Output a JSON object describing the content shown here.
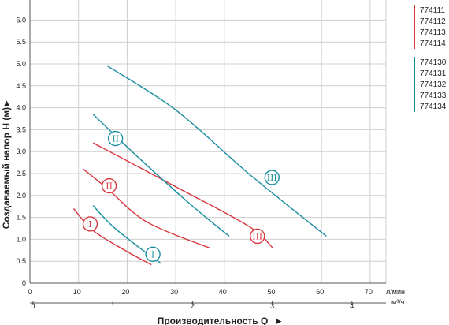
{
  "chart_data": {
    "type": "line",
    "xlabel": "Производительность Q",
    "ylabel": "Создаваемый напор H (м)",
    "x_unit_top": "л/мин",
    "x_unit_bottom": "м³/ч",
    "xlim": [
      0,
      80
    ],
    "ylim": [
      0,
      6.5
    ],
    "x_ticks_top": [
      "0",
      "10",
      "20",
      "30",
      "40",
      "50",
      "60",
      "70"
    ],
    "x_ticks_bottom": [
      "0",
      "1",
      "2",
      "3",
      "4"
    ],
    "y_ticks": [
      "0",
      "0.5",
      "1.0",
      "1.5",
      "2.0",
      "2.5",
      "3.0",
      "3.5",
      "4.0",
      "4.5",
      "5.0",
      "5.5",
      "6.0"
    ],
    "legend_groups": [
      {
        "color": "#d8363c",
        "items": [
          "774111",
          "774112",
          "774113",
          "774114"
        ]
      },
      {
        "color": "#1a8ea1",
        "items": [
          "774130",
          "774131",
          "774132",
          "774133",
          "774134"
        ]
      }
    ],
    "series": [
      {
        "group": 0,
        "speed": "I",
        "color": "#d8363c",
        "points": [
          [
            9,
            1.7
          ],
          [
            13,
            1.2
          ],
          [
            20,
            0.72
          ],
          [
            25,
            0.42
          ]
        ],
        "label_at": [
          12.4,
          1.35
        ]
      },
      {
        "group": 0,
        "speed": "II",
        "color": "#d8363c",
        "points": [
          [
            11,
            2.6
          ],
          [
            16,
            2.15
          ],
          [
            24,
            1.4
          ],
          [
            37,
            0.8
          ]
        ],
        "label_at": [
          16.3,
          2.22
        ]
      },
      {
        "group": 0,
        "speed": "III",
        "color": "#d8363c",
        "points": [
          [
            13,
            3.2
          ],
          [
            30,
            2.2
          ],
          [
            45,
            1.3
          ],
          [
            50,
            0.8
          ]
        ],
        "label_at": [
          46.8,
          1.07
        ]
      },
      {
        "group": 1,
        "speed": "I",
        "color": "#1a8ea1",
        "points": [
          [
            13,
            1.77
          ],
          [
            17,
            1.3
          ],
          [
            23,
            0.77
          ],
          [
            27,
            0.45
          ]
        ],
        "label_at": [
          25.3,
          0.66
        ]
      },
      {
        "group": 1,
        "speed": "II",
        "color": "#1a8ea1",
        "points": [
          [
            13,
            3.85
          ],
          [
            22,
            2.9
          ],
          [
            33,
            1.8
          ],
          [
            41,
            1.07
          ]
        ],
        "label_at": [
          17.6,
          3.3
        ]
      },
      {
        "group": 1,
        "speed": "III",
        "color": "#1a8ea1",
        "points": [
          [
            16,
            4.95
          ],
          [
            30,
            3.95
          ],
          [
            45,
            2.5
          ],
          [
            61,
            1.07
          ]
        ],
        "label_at": [
          49.8,
          2.41
        ]
      }
    ]
  }
}
